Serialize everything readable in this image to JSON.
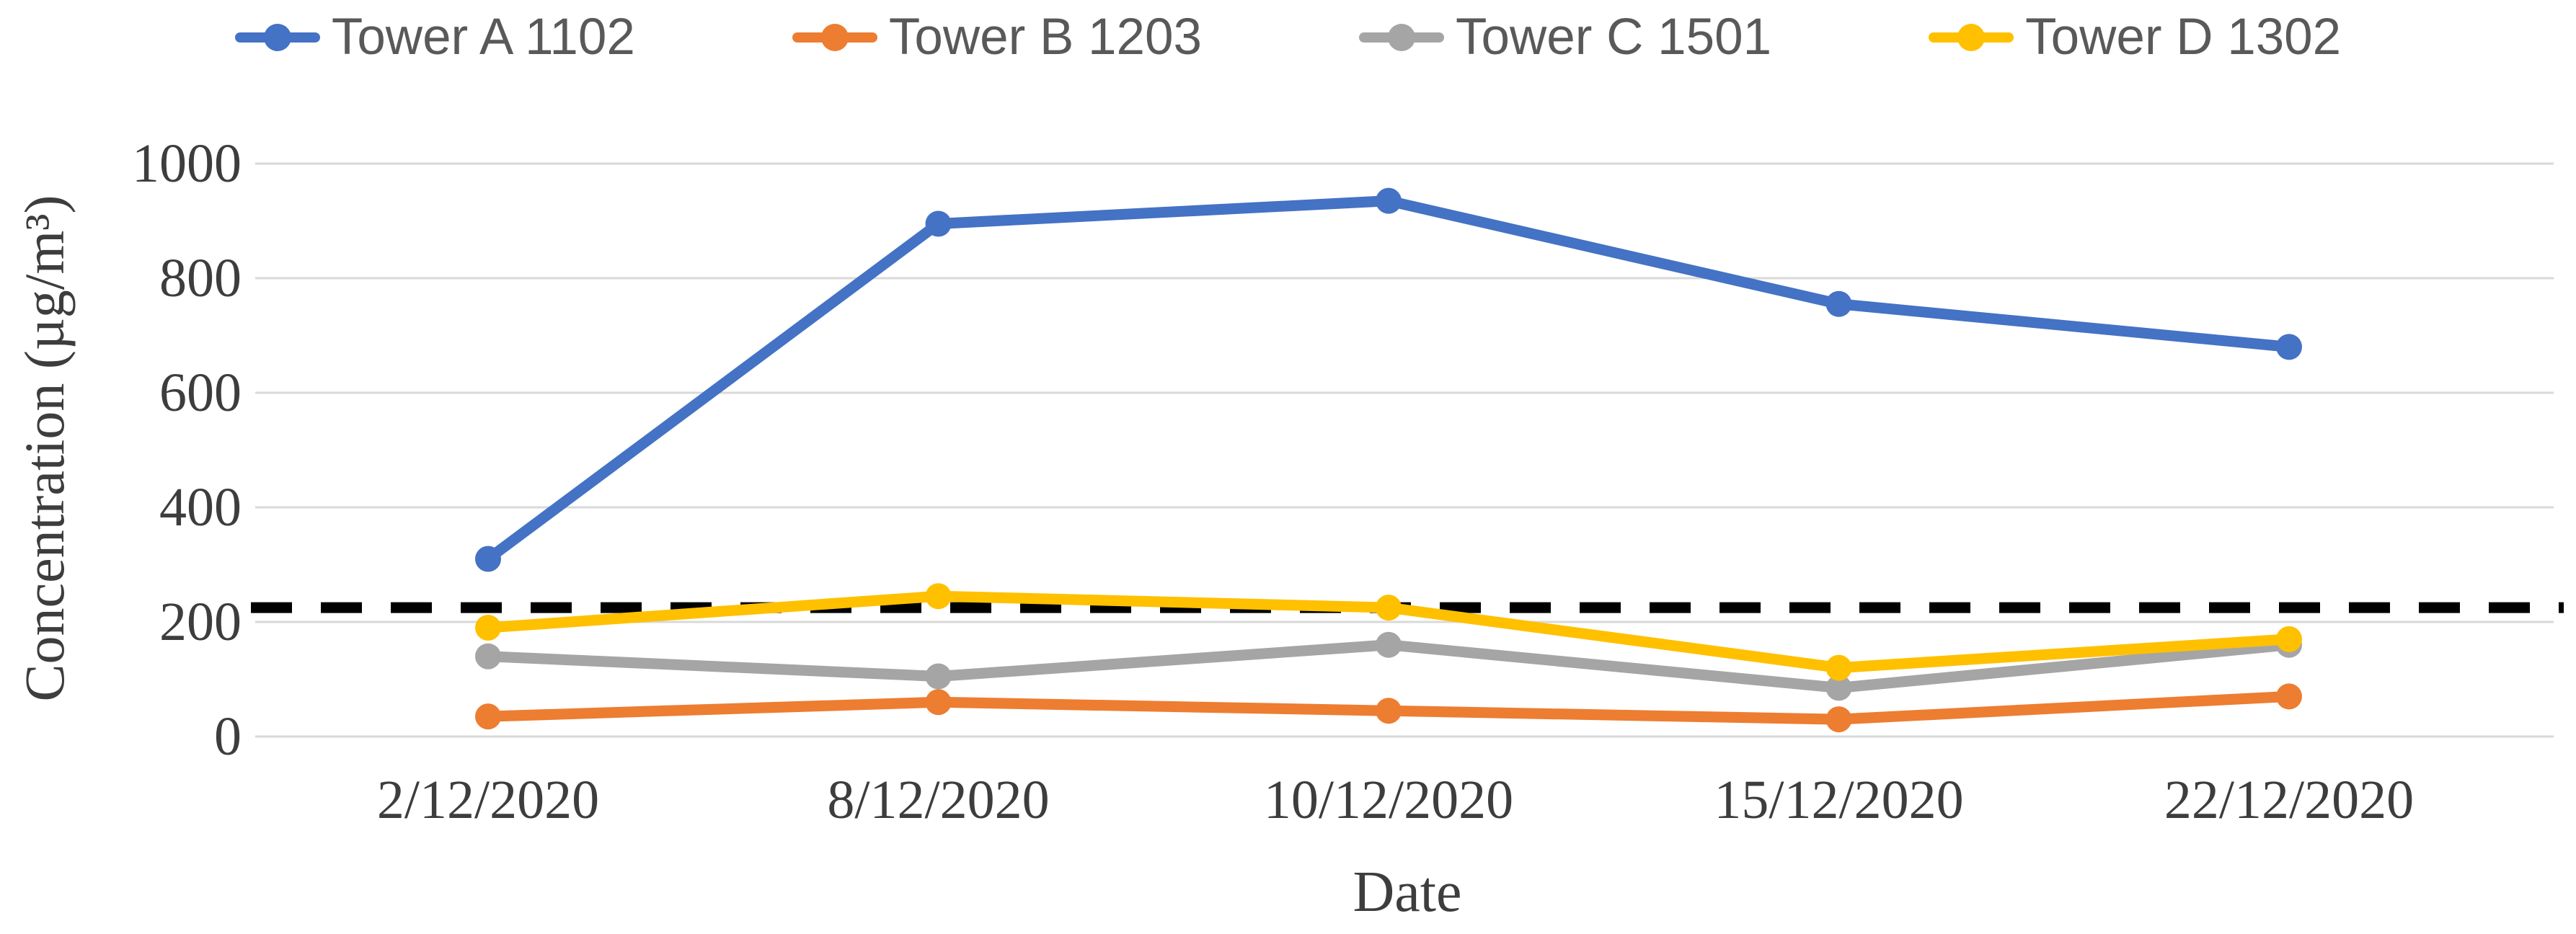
{
  "chart_data": {
    "type": "line",
    "title": "",
    "xlabel": "Date",
    "ylabel": "Concentration (µg/m³)",
    "ylim": [
      0,
      1000
    ],
    "yticks": [
      0,
      200,
      400,
      600,
      800,
      1000
    ],
    "categories": [
      "2/12/2020",
      "8/12/2020",
      "10/12/2020",
      "15/12/2020",
      "22/12/2020"
    ],
    "series": [
      {
        "name": "Tower B 1203",
        "color": "#ED7D31",
        "values": [
          35,
          60,
          45,
          30,
          70
        ]
      },
      {
        "name": "Tower C 1501",
        "color": "#A5A5A5",
        "values": [
          140,
          105,
          160,
          85,
          160
        ]
      },
      {
        "name": "Tower D 1302",
        "color": "#FFC000",
        "values": [
          190,
          245,
          225,
          120,
          170
        ]
      },
      {
        "name": "Tower A 1102",
        "color": "#4472C4",
        "values": [
          310,
          895,
          935,
          755,
          680
        ]
      }
    ],
    "legend_order": [
      "Tower A 1102",
      "Tower B 1203",
      "Tower C 1501",
      "Tower D 1302"
    ],
    "threshold_line": {
      "value": 225,
      "style": "dashed",
      "color": "#000000"
    },
    "legend_position": "top",
    "grid": "horizontal",
    "gridline_color": "#D9D9D9",
    "axis_text_color": "#3d3d3d",
    "legend_text_color": "#595959"
  }
}
